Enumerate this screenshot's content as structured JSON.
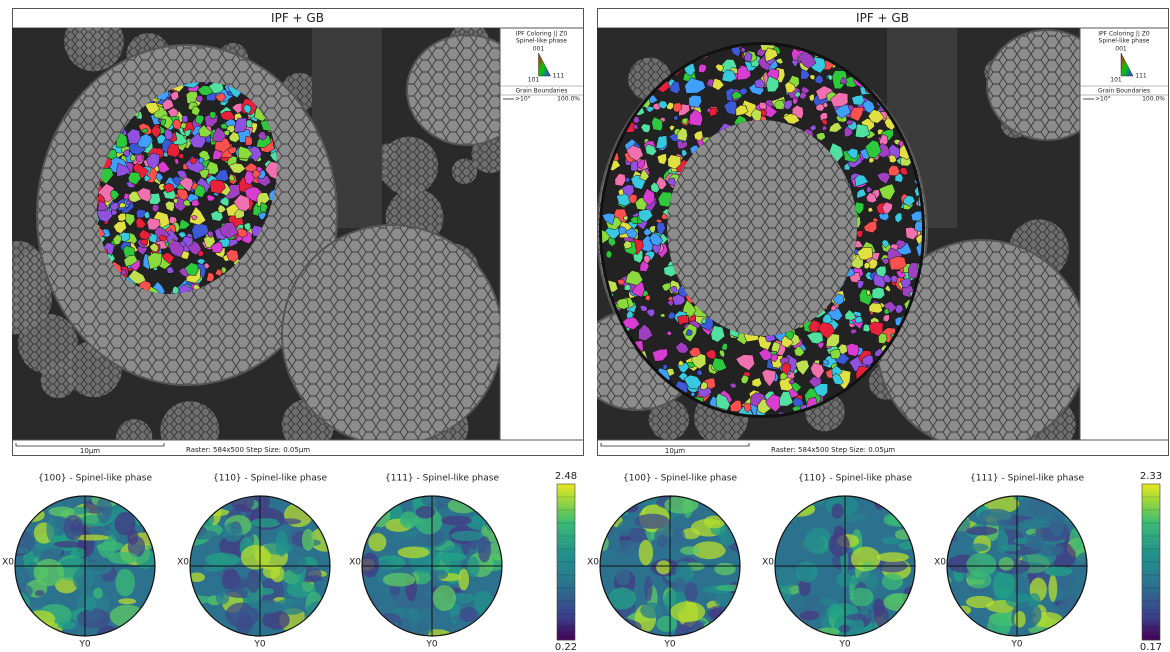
{
  "panels": [
    {
      "title": "IPF + GB",
      "legend": {
        "coloring": "IPF Coloring || Z0",
        "phase": "Spinel-like phase",
        "corners": [
          "001",
          "101",
          "111"
        ],
        "gb_title": "Grain Boundaries",
        "gb_label": ">10°",
        "gb_value": "100.0%"
      },
      "scale_bar": "10µm",
      "info": "Raster: 584x500   Step Size: 0.05µm",
      "pole_figures": [
        "{100} - Spinel-like phase",
        "{110} - Spinel-like phase",
        "{111} - Spinel-like phase"
      ],
      "axis_x": "X0",
      "axis_y": "Y0",
      "colorbar": {
        "max": 2.48,
        "min": 0.22
      }
    },
    {
      "title": "IPF + GB",
      "legend": {
        "coloring": "IPF Coloring || Z0",
        "phase": "Spinel-like phase",
        "corners": [
          "001",
          "101",
          "111"
        ],
        "gb_title": "Grain Boundaries",
        "gb_label": ">10°",
        "gb_value": "100.0%"
      },
      "scale_bar": "10µm",
      "info": "Raster: 584x500   Step Size: 0.05µm",
      "pole_figures": [
        "{100} - Spinel-like phase",
        "{110} - Spinel-like phase",
        "{111} - Spinel-like phase"
      ],
      "axis_x": "X0",
      "axis_y": "Y0",
      "colorbar": {
        "max": 2.33,
        "min": 0.17
      }
    }
  ]
}
